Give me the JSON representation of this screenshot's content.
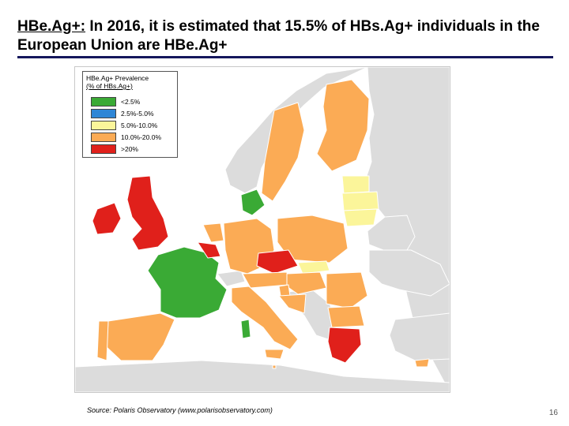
{
  "title": {
    "keyword": "HBe.Ag+:",
    "text": " In 2016, it is estimated that 15.5% of HBs.Ag+ individuals in the European Union are HBe.Ag+"
  },
  "legend": {
    "title": "HBe.Ag+ Prevalence",
    "subtitle": "(% of HBs.Ag+)",
    "items": [
      {
        "label": "<2.5%",
        "color": "#3aaa35"
      },
      {
        "label": "2.5%-5.0%",
        "color": "#2e86d6"
      },
      {
        "label": "5.0%-10.0%",
        "color": "#fbf59a"
      },
      {
        "label": "10.0%-20.0%",
        "color": "#fbab55"
      },
      {
        "label": ">20%",
        "color": "#e0201b"
      }
    ]
  },
  "colors": {
    "non_eu": "#dcdcdc",
    "sea": "#ffffff",
    "rule": "#14165c"
  },
  "source": "Source: Polaris Observatory (www.polarisobservatory.com)",
  "page_number": "16"
}
